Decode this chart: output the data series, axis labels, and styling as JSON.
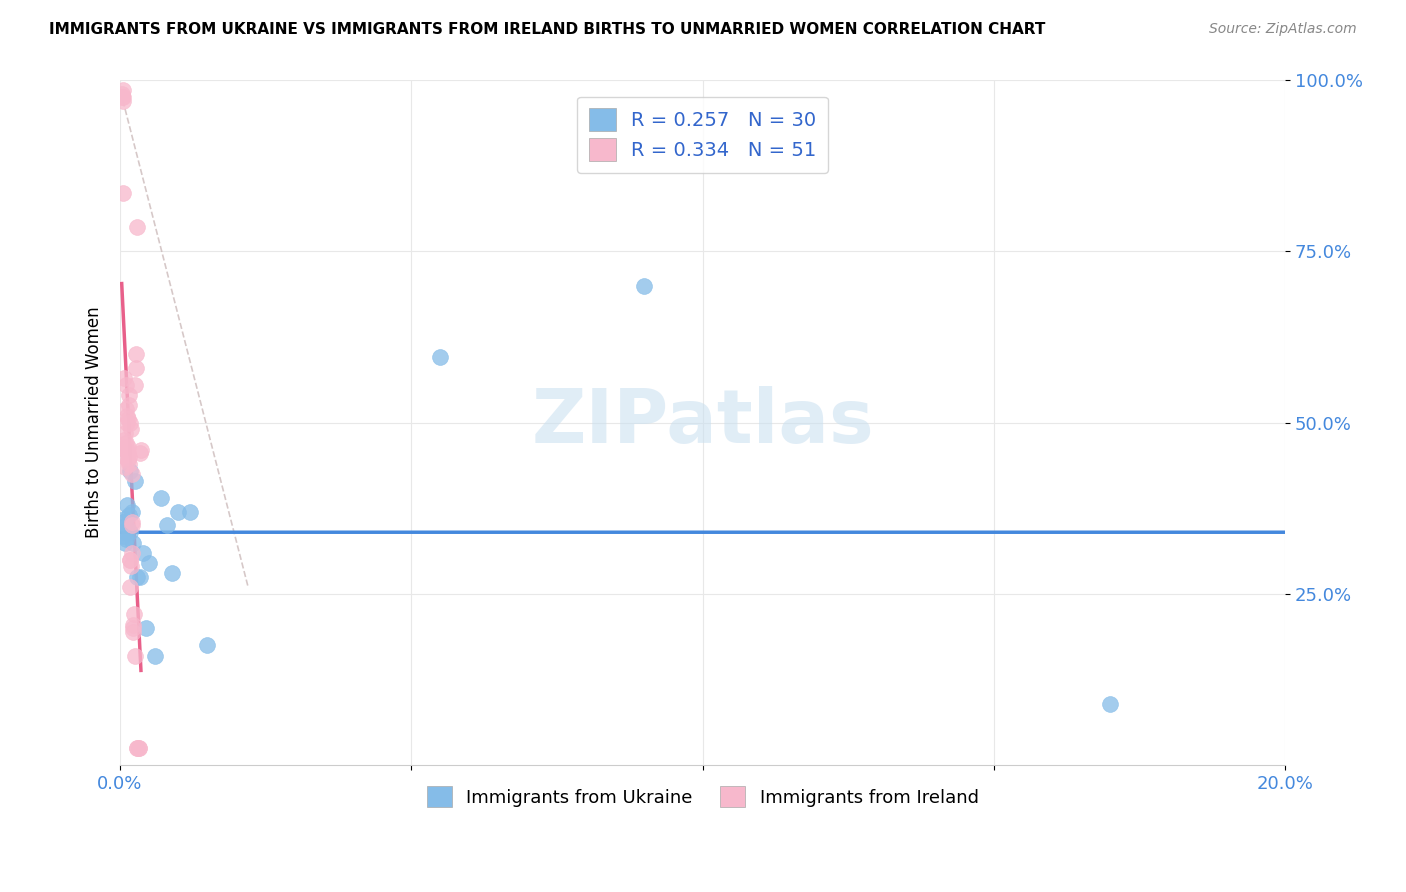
{
  "title": "IMMIGRANTS FROM UKRAINE VS IMMIGRANTS FROM IRELAND BIRTHS TO UNMARRIED WOMEN CORRELATION CHART",
  "source": "Source: ZipAtlas.com",
  "ylabel": "Births to Unmarried Women",
  "ytick_labels": [
    "25.0%",
    "50.0%",
    "75.0%",
    "100.0%"
  ],
  "ytick_values": [
    0.25,
    0.5,
    0.75,
    1.0
  ],
  "legend_ukraine": "Immigrants from Ukraine",
  "legend_ireland": "Immigrants from Ireland",
  "R_ukraine": 0.257,
  "N_ukraine": 30,
  "R_ireland": 0.334,
  "N_ireland": 51,
  "ukraine_color": "#85bce8",
  "ireland_color": "#f7b8cc",
  "ukraine_line_color": "#4488dd",
  "ireland_line_color": "#e8608a",
  "ukraine_scatter_x": [
    0.0005,
    0.0006,
    0.0007,
    0.0008,
    0.0009,
    0.001,
    0.0011,
    0.0012,
    0.0013,
    0.0015,
    0.0017,
    0.0018,
    0.002,
    0.0022,
    0.0025,
    0.003,
    0.0035,
    0.004,
    0.0045,
    0.005,
    0.006,
    0.007,
    0.008,
    0.009,
    0.01,
    0.012,
    0.015,
    0.055,
    0.09,
    0.17
  ],
  "ukraine_scatter_y": [
    0.355,
    0.335,
    0.36,
    0.325,
    0.34,
    0.33,
    0.35,
    0.38,
    0.345,
    0.365,
    0.34,
    0.43,
    0.37,
    0.325,
    0.415,
    0.275,
    0.275,
    0.31,
    0.2,
    0.295,
    0.16,
    0.39,
    0.35,
    0.28,
    0.37,
    0.37,
    0.175,
    0.595,
    0.7,
    0.09
  ],
  "ireland_scatter_x": [
    0.0003,
    0.0004,
    0.0005,
    0.0005,
    0.0006,
    0.0006,
    0.0007,
    0.0007,
    0.0008,
    0.0008,
    0.0009,
    0.0009,
    0.001,
    0.001,
    0.0011,
    0.0011,
    0.0012,
    0.0012,
    0.0013,
    0.0013,
    0.0014,
    0.0014,
    0.0015,
    0.0015,
    0.0016,
    0.0016,
    0.0017,
    0.0017,
    0.0018,
    0.0018,
    0.0019,
    0.0019,
    0.002,
    0.002,
    0.0021,
    0.0021,
    0.0022,
    0.0023,
    0.0023,
    0.0024,
    0.0025,
    0.0026,
    0.0028,
    0.0028,
    0.0029,
    0.003,
    0.003,
    0.0032,
    0.0033,
    0.0035,
    0.0036
  ],
  "ireland_scatter_y": [
    0.975,
    0.98,
    0.985,
    0.97,
    0.975,
    0.835,
    0.565,
    0.475,
    0.45,
    0.485,
    0.46,
    0.435,
    0.47,
    0.465,
    0.52,
    0.555,
    0.51,
    0.5,
    0.455,
    0.445,
    0.465,
    0.505,
    0.525,
    0.54,
    0.45,
    0.44,
    0.3,
    0.3,
    0.5,
    0.26,
    0.29,
    0.49,
    0.35,
    0.425,
    0.31,
    0.355,
    0.205,
    0.2,
    0.195,
    0.22,
    0.16,
    0.555,
    0.58,
    0.6,
    0.785,
    0.025,
    0.025,
    0.025,
    0.025,
    0.455,
    0.46
  ],
  "ireland_line_x_start": 0.0003,
  "ireland_line_x_end": 0.0036,
  "xmin": 0.0,
  "xmax": 0.2,
  "ymin": 0.0,
  "ymax": 1.0
}
